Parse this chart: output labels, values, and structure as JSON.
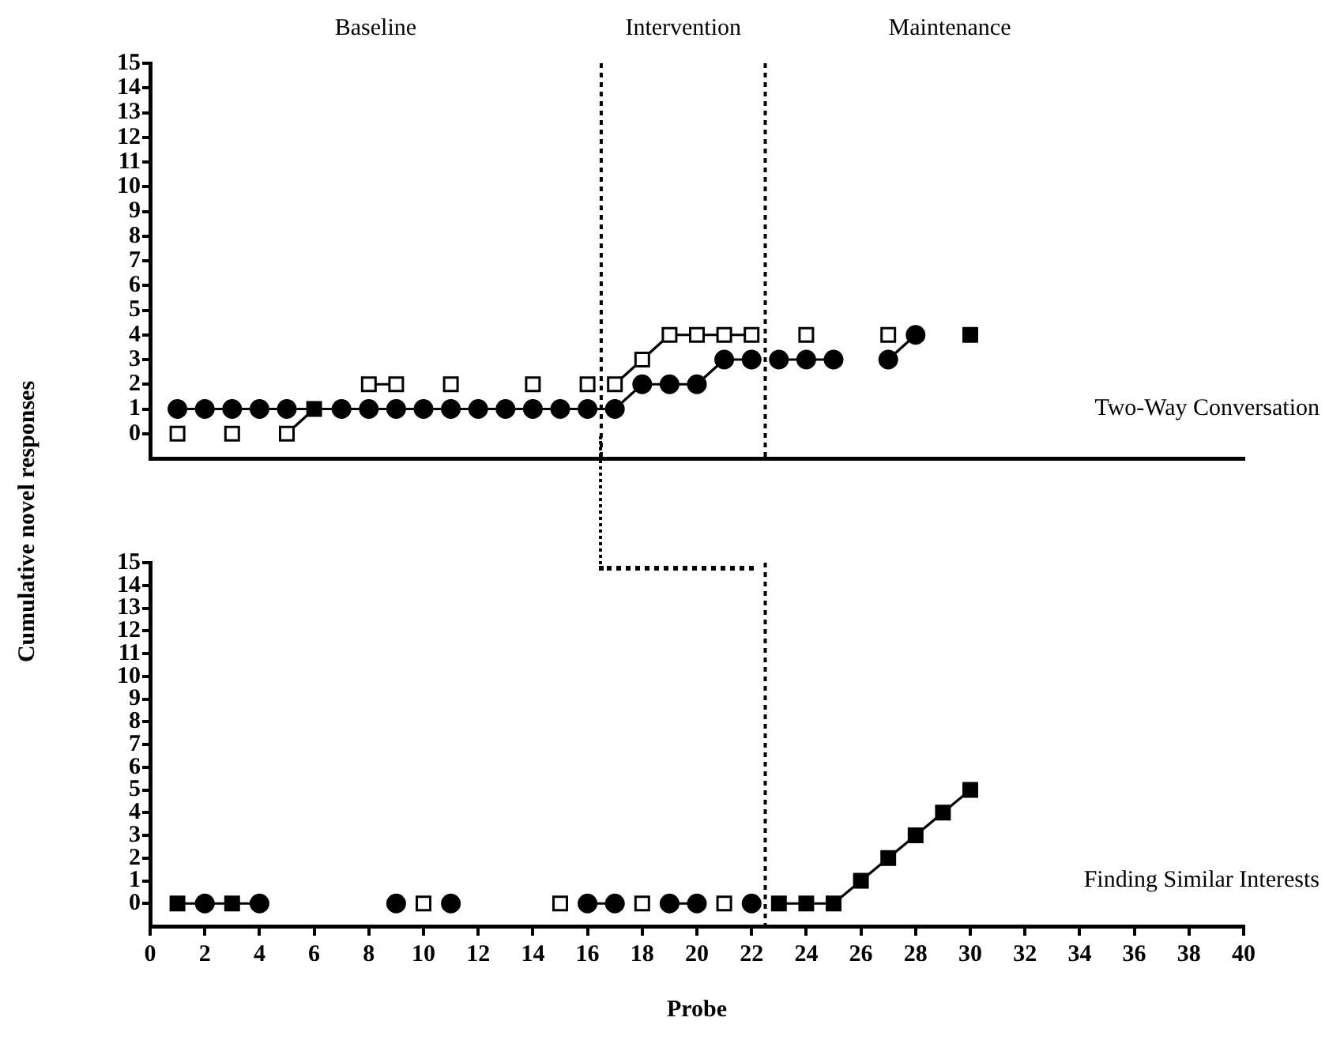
{
  "chart_data": [
    {
      "type": "scatter",
      "title": "Two-Way Conversation",
      "ylabel": "Cumulative novel responses",
      "annotations": [
        "Baseline",
        "Intervention",
        "Maintenance"
      ],
      "xlim": [
        0,
        40
      ],
      "ylim": [
        -1,
        15
      ],
      "yticks": [
        0,
        1,
        2,
        3,
        4,
        5,
        6,
        7,
        8,
        9,
        10,
        11,
        12,
        13,
        14,
        15
      ],
      "tick_labels": "y",
      "grid": false,
      "legend": false,
      "ref_lines": [
        {
          "axis": "x",
          "value": 16.5,
          "line_style": "dotted"
        },
        {
          "axis": "x",
          "value": 22.5,
          "line_style": "dotted"
        }
      ],
      "series": [
        {
          "type": "line",
          "marker": "none",
          "color": "#000000",
          "x": [
            1,
            2,
            3,
            4,
            5,
            6,
            7,
            8,
            9,
            10,
            11,
            12,
            13,
            14,
            15,
            16,
            17,
            18,
            19,
            20,
            21,
            22
          ],
          "values": [
            1,
            1,
            1,
            1,
            1,
            1,
            1,
            1,
            1,
            1,
            1,
            1,
            1,
            1,
            1,
            1,
            1,
            2,
            2,
            2,
            3,
            3
          ]
        },
        {
          "type": "line",
          "marker": "none",
          "color": "#000000",
          "x": [
            23,
            24,
            25
          ],
          "values": [
            3,
            3,
            3
          ]
        },
        {
          "type": "line",
          "marker": "none",
          "color": "#000000",
          "x": [
            27,
            28
          ],
          "values": [
            3,
            4
          ]
        },
        {
          "type": "line",
          "marker": "none",
          "color": "#000000",
          "x": [
            5,
            6
          ],
          "values": [
            0,
            1
          ]
        },
        {
          "type": "line",
          "marker": "none",
          "color": "#000000",
          "x": [
            8,
            9
          ],
          "values": [
            2,
            2
          ]
        },
        {
          "type": "line",
          "marker": "none",
          "color": "#000000",
          "x": [
            17,
            18,
            19,
            20,
            21,
            22
          ],
          "values": [
            2,
            3,
            4,
            4,
            4,
            4
          ]
        },
        {
          "marker": "circle",
          "color": "#000000",
          "x": [
            1,
            2,
            3,
            4,
            5,
            7,
            8,
            9,
            10,
            11,
            12,
            13,
            14,
            15,
            16,
            17,
            18,
            19,
            20,
            21,
            22,
            23,
            24,
            25,
            27,
            28
          ],
          "values": [
            1,
            1,
            1,
            1,
            1,
            1,
            1,
            1,
            1,
            1,
            1,
            1,
            1,
            1,
            1,
            1,
            2,
            2,
            2,
            3,
            3,
            3,
            3,
            3,
            3,
            4
          ]
        },
        {
          "marker": "square",
          "color": "#000000",
          "x": [
            6,
            30
          ],
          "values": [
            1,
            4
          ]
        },
        {
          "marker": "square",
          "color": "#ffffff",
          "x": [
            1,
            3,
            5,
            8,
            9,
            11,
            14,
            16,
            17,
            18,
            19,
            20,
            21,
            22,
            24,
            27
          ],
          "values": [
            0,
            0,
            0,
            2,
            2,
            2,
            2,
            2,
            2,
            3,
            4,
            4,
            4,
            4,
            4,
            4
          ]
        }
      ]
    },
    {
      "type": "scatter",
      "title": "Finding Similar Interests",
      "xlabel": "Probe",
      "xlim": [
        0,
        40
      ],
      "xticks": [
        0,
        2,
        4,
        6,
        8,
        10,
        12,
        14,
        16,
        18,
        20,
        22,
        24,
        26,
        28,
        30,
        32,
        34,
        36,
        38,
        40
      ],
      "ylim": [
        -1,
        15
      ],
      "yticks": [
        0,
        1,
        2,
        3,
        4,
        5,
        6,
        7,
        8,
        9,
        10,
        11,
        12,
        13,
        14,
        15
      ],
      "grid": false,
      "legend": false,
      "ref_lines": [
        {
          "axis": "x",
          "value": 22.5,
          "line_style": "dotted"
        }
      ],
      "series": [
        {
          "type": "line",
          "marker": "none",
          "color": "#000000",
          "x": [
            1,
            2,
            3,
            4
          ],
          "values": [
            0,
            0,
            0,
            0
          ]
        },
        {
          "type": "line",
          "marker": "none",
          "color": "#000000",
          "x": [
            16,
            17
          ],
          "values": [
            0,
            0
          ]
        },
        {
          "type": "line",
          "marker": "none",
          "color": "#000000",
          "x": [
            19,
            20
          ],
          "values": [
            0,
            0
          ]
        },
        {
          "type": "line",
          "marker": "none",
          "color": "#000000",
          "x": [
            23,
            24,
            25,
            26,
            27,
            28,
            29,
            30
          ],
          "values": [
            0,
            0,
            0,
            1,
            2,
            3,
            4,
            5
          ]
        },
        {
          "marker": "circle",
          "color": "#000000",
          "x": [
            2,
            4,
            9,
            11,
            16,
            17,
            19,
            20,
            22
          ],
          "values": [
            0,
            0,
            0,
            0,
            0,
            0,
            0,
            0,
            0
          ]
        },
        {
          "marker": "square",
          "color": "#000000",
          "x": [
            1,
            3,
            23,
            24,
            25,
            26,
            27,
            28,
            29,
            30
          ],
          "values": [
            0,
            0,
            0,
            0,
            0,
            1,
            2,
            3,
            4,
            5
          ]
        },
        {
          "marker": "square",
          "color": "#ffffff",
          "x": [
            10,
            15,
            18,
            21
          ],
          "values": [
            0,
            0,
            0,
            0
          ]
        }
      ]
    }
  ]
}
